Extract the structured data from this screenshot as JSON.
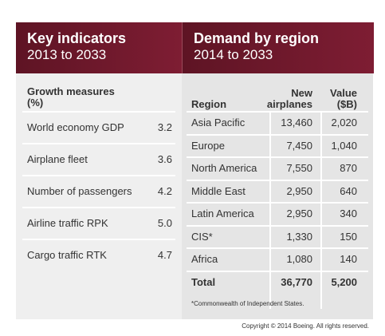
{
  "left": {
    "title": "Key indicators",
    "subtitle": "2013 to 2033",
    "column_header": "Growth measures (%)",
    "rows": [
      [
        "World economy GDP",
        "3.2"
      ],
      [
        "Airplane fleet",
        "3.6"
      ],
      [
        "Number of passengers",
        "4.2"
      ],
      [
        "Airline traffic RPK",
        "5.0"
      ],
      [
        "Cargo traffic RTK",
        "4.7"
      ]
    ]
  },
  "right": {
    "title": "Demand by region",
    "subtitle": "2014 to 2033",
    "headers": [
      "Region",
      "New airplanes",
      "Value ($B)"
    ],
    "rows": [
      [
        "Asia Pacific",
        "13,460",
        "2,020"
      ],
      [
        "Europe",
        "7,450",
        "1,040"
      ],
      [
        "North America",
        "7,550",
        "870"
      ],
      [
        "Middle East",
        "2,950",
        "640"
      ],
      [
        "Latin America",
        "2,950",
        "340"
      ],
      [
        "CIS*",
        "1,330",
        "150"
      ],
      [
        "Africa",
        "1,080",
        "140"
      ]
    ],
    "total": [
      "Total",
      "36,770",
      "5,200"
    ],
    "footnote": "*Commonwealth of Independent States."
  },
  "copyright": "Copyright © 2014 Boeing. All rights reserved."
}
